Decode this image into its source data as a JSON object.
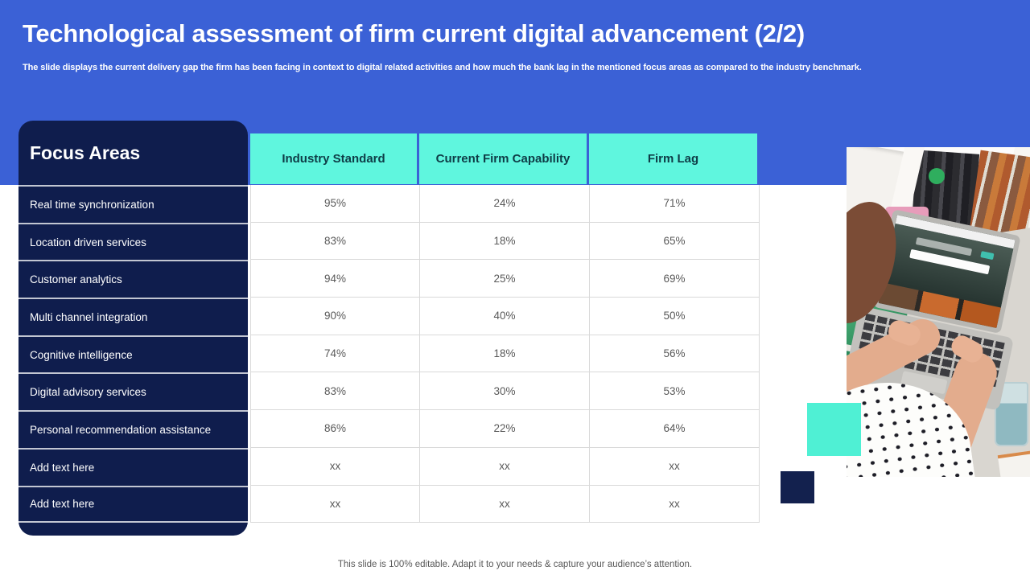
{
  "slide": {
    "title": "Technological assessment of firm current digital advancement (2/2)",
    "subtitle": "The slide displays the current delivery gap the firm has been facing in context to digital related activities and how much the bank lag in the mentioned focus areas as compared to the industry benchmark.",
    "footer": "This slide is 100% editable. Adapt it to your needs & capture your audience’s attention."
  },
  "table": {
    "corner_header": "Focus Areas",
    "columns": [
      "Industry Standard",
      "Current Firm Capability",
      "Firm Lag"
    ],
    "rows": [
      {
        "label": "Real time synchronization",
        "values": [
          "95%",
          "24%",
          "71%"
        ]
      },
      {
        "label": "Location driven services",
        "values": [
          "83%",
          "18%",
          "65%"
        ]
      },
      {
        "label": "Customer analytics",
        "values": [
          "94%",
          "25%",
          "69%"
        ]
      },
      {
        "label": "Multi channel integration",
        "values": [
          "90%",
          "40%",
          "50%"
        ]
      },
      {
        "label": "Cognitive intelligence",
        "values": [
          "74%",
          "18%",
          "56%"
        ]
      },
      {
        "label": "Digital advisory services",
        "values": [
          "83%",
          "30%",
          "53%"
        ]
      },
      {
        "label": "Personal recommendation assistance",
        "values": [
          "86%",
          "22%",
          "64%"
        ]
      },
      {
        "label": "Add text here",
        "values": [
          "xx",
          "xx",
          "xx"
        ]
      },
      {
        "label": "Add text here",
        "values": [
          "xx",
          "xx",
          "xx"
        ]
      }
    ]
  },
  "chart_data": {
    "type": "table",
    "title": "Technological assessment of firm current digital advancement (2/2)",
    "categories": [
      "Real time synchronization",
      "Location driven services",
      "Customer analytics",
      "Multi channel integration",
      "Cognitive intelligence",
      "Digital advisory services",
      "Personal recommendation assistance",
      "Add text here",
      "Add text here"
    ],
    "series": [
      {
        "name": "Industry Standard",
        "values": [
          95,
          83,
          94,
          90,
          74,
          83,
          86,
          null,
          null
        ]
      },
      {
        "name": "Current Firm Capability",
        "values": [
          24,
          18,
          25,
          40,
          18,
          30,
          22,
          null,
          null
        ]
      },
      {
        "name": "Firm Lag",
        "values": [
          71,
          65,
          69,
          50,
          56,
          53,
          64,
          null,
          null
        ]
      }
    ]
  },
  "colors": {
    "band_blue": "#3B61D6",
    "navy": "#0F1D4D",
    "header_teal": "#5FF6DE",
    "teal_square": "#4FF0D4",
    "navy_square": "#13214E",
    "value_text": "#595959",
    "grid_line": "#D9D9D9"
  },
  "photo": {
    "alt": "Person typing on a laptop at a desk in front of a bookshelf"
  }
}
